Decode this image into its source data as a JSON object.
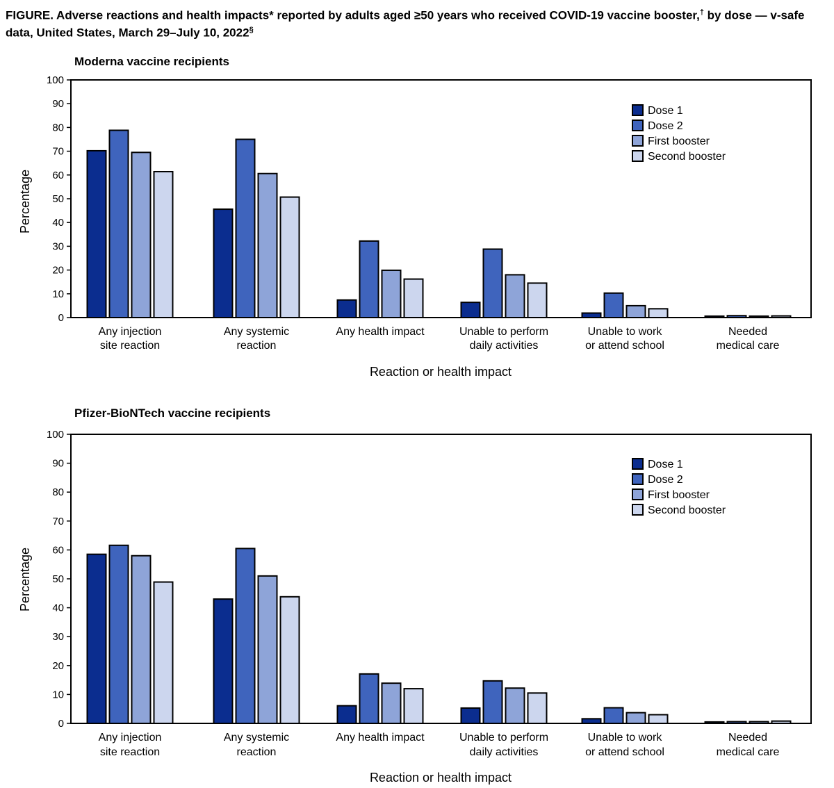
{
  "figure": {
    "title_main": "FIGURE. Adverse reactions and health impacts* reported by adults aged ≥50 years who received COVID-19 vaccine booster,",
    "title_dagger": "†",
    "title_mid": " by dose — v-safe data, United States, March 29–July 10, 2022",
    "title_section": "§"
  },
  "colors": {
    "series": [
      "#0b2d8f",
      "#3f64bd",
      "#8ea4d8",
      "#ccd6ee"
    ],
    "stroke": "#000000"
  },
  "chart_data": [
    {
      "type": "bar",
      "title": "Moderna vaccine recipients",
      "xlabel": "Reaction or health impact",
      "ylabel": "Percentage",
      "ylim": [
        0,
        100
      ],
      "yticks": [
        0,
        10,
        20,
        30,
        40,
        50,
        60,
        70,
        80,
        90,
        100
      ],
      "legend_position": "top-right",
      "grid": false,
      "categories": [
        [
          "Any injection",
          "site reaction"
        ],
        [
          "Any systemic",
          "reaction"
        ],
        [
          "Any health impact"
        ],
        [
          "Unable to perform",
          "daily activities"
        ],
        [
          "Unable to work",
          "or attend school"
        ],
        [
          "Needed",
          "medical care"
        ]
      ],
      "series": [
        {
          "name": "Dose 1",
          "values": [
            70.2,
            45.6,
            7.4,
            6.4,
            1.9,
            0.6
          ]
        },
        {
          "name": "Dose 2",
          "values": [
            78.8,
            75.0,
            32.2,
            28.8,
            10.3,
            0.8
          ]
        },
        {
          "name": "First booster",
          "values": [
            69.5,
            60.6,
            19.9,
            18.0,
            5.0,
            0.6
          ]
        },
        {
          "name": "Second booster",
          "values": [
            61.4,
            50.7,
            16.2,
            14.5,
            3.7,
            0.7
          ]
        }
      ]
    },
    {
      "type": "bar",
      "title": "Pfizer-BioNTech vaccine recipients",
      "xlabel": "Reaction or health impact",
      "ylabel": "Percentage",
      "ylim": [
        0,
        100
      ],
      "yticks": [
        0,
        10,
        20,
        30,
        40,
        50,
        60,
        70,
        80,
        90,
        100
      ],
      "legend_position": "top-right",
      "grid": false,
      "categories": [
        [
          "Any injection",
          "site reaction"
        ],
        [
          "Any systemic",
          "reaction"
        ],
        [
          "Any health impact"
        ],
        [
          "Unable to perform",
          "daily activities"
        ],
        [
          "Unable to work",
          "or attend school"
        ],
        [
          "Needed",
          "medical care"
        ]
      ],
      "series": [
        {
          "name": "Dose 1",
          "values": [
            58.5,
            43.0,
            6.1,
            5.3,
            1.6,
            0.5
          ]
        },
        {
          "name": "Dose 2",
          "values": [
            61.6,
            60.5,
            17.1,
            14.7,
            5.4,
            0.6
          ]
        },
        {
          "name": "First booster",
          "values": [
            58.0,
            51.0,
            13.9,
            12.2,
            3.7,
            0.6
          ]
        },
        {
          "name": "Second booster",
          "values": [
            48.9,
            43.8,
            12.0,
            10.5,
            3.0,
            0.8
          ]
        }
      ]
    }
  ]
}
